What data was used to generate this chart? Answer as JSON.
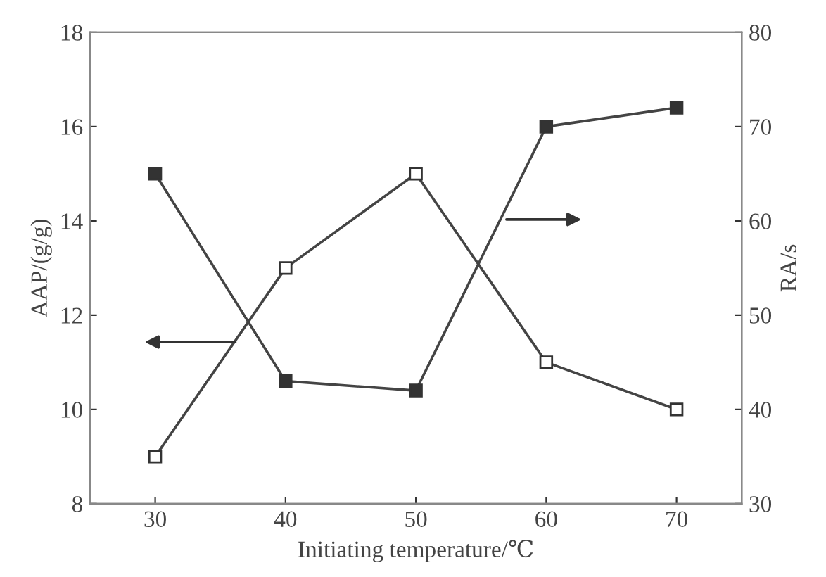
{
  "chart_data": {
    "type": "line",
    "xlabel": "Initiating temperature/℃",
    "ylabel": "AAP/(g/g)",
    "y2label": "RA/s",
    "x": [
      30,
      40,
      50,
      60,
      70
    ],
    "series": [
      {
        "color": "#444444",
        "values": [
          9,
          13,
          15,
          11,
          10
        ],
        "marker": "square"
      },
      {
        "color": "#444444",
        "values": [
          65,
          43,
          42,
          70,
          72
        ],
        "marker": "square",
        "axis": "y2"
      }
    ],
    "xlim": [
      25,
      75
    ],
    "xticks": [
      30,
      40,
      50,
      60,
      70
    ],
    "ylim": [
      8,
      18
    ],
    "yticks": [
      8,
      10,
      12,
      14,
      16,
      18
    ],
    "y2lim": [
      30,
      80
    ],
    "y2ticks": [
      30,
      40,
      50,
      60,
      70,
      80
    ],
    "grid": false,
    "line_style": "solid"
  }
}
